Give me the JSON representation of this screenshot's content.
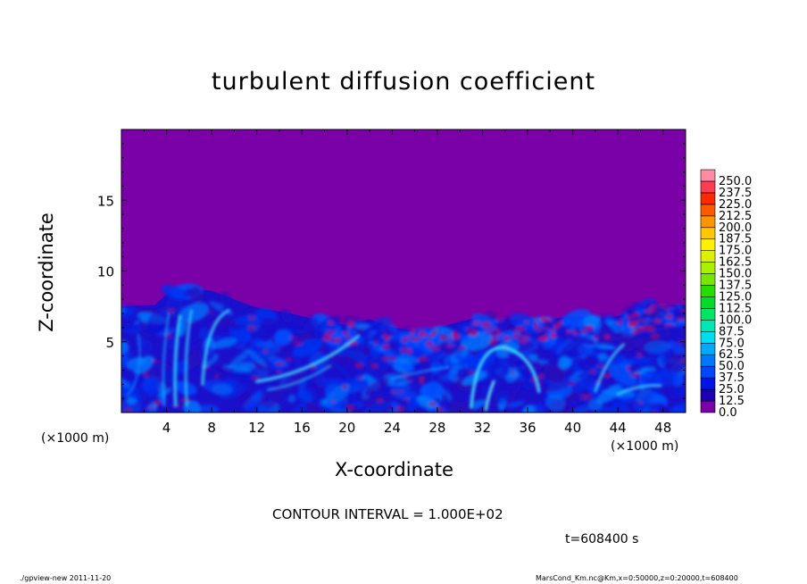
{
  "chart_data": {
    "type": "heatmap",
    "title": "turbulent diffusion coefficient",
    "xlabel": "X-coordinate",
    "ylabel": "Z-coordinate",
    "x_unit_label": "(×1000 m)",
    "x_ticks": [
      4,
      8,
      12,
      16,
      20,
      24,
      28,
      32,
      36,
      40,
      44,
      48
    ],
    "y_ticks": [
      5,
      10,
      15
    ],
    "xlim": [
      0,
      50
    ],
    "ylim": [
      0,
      20
    ],
    "colorbar": {
      "levels": [
        "0.0",
        "12.5",
        "25.0",
        "37.5",
        "50.0",
        "62.5",
        "75.0",
        "87.5",
        "100.0",
        "112.5",
        "125.0",
        "137.5",
        "150.0",
        "162.5",
        "175.0",
        "187.5",
        "200.0",
        "212.5",
        "225.0",
        "237.5",
        "250.0"
      ],
      "colors": [
        "#7a00a8",
        "#1e00b4",
        "#0014e6",
        "#0046ff",
        "#0078ff",
        "#00aaff",
        "#00dcf0",
        "#00e6b4",
        "#00e664",
        "#00dc28",
        "#28dc00",
        "#78e600",
        "#aaf000",
        "#dcf000",
        "#fff000",
        "#ffc800",
        "#ff9600",
        "#ff5a00",
        "#ff2800",
        "#ff3c50",
        "#ff8ca0"
      ]
    },
    "background_color": "#7a00a8",
    "turbulent_layer_top": [
      [
        0,
        7.5
      ],
      [
        3,
        7.6
      ],
      [
        4,
        8.4
      ],
      [
        6,
        8.8
      ],
      [
        8,
        8.6
      ],
      [
        10,
        8.0
      ],
      [
        12,
        7.4
      ],
      [
        15,
        7.0
      ],
      [
        18,
        6.4
      ],
      [
        20,
        6.2
      ],
      [
        22,
        6.6
      ],
      [
        24,
        6.0
      ],
      [
        26,
        5.8
      ],
      [
        28,
        6.0
      ],
      [
        30,
        6.4
      ],
      [
        32,
        6.8
      ],
      [
        34,
        6.6
      ],
      [
        36,
        6.4
      ],
      [
        38,
        6.6
      ],
      [
        40,
        6.8
      ],
      [
        42,
        6.6
      ],
      [
        44,
        6.8
      ],
      [
        46,
        7.4
      ],
      [
        48,
        7.6
      ],
      [
        50,
        7.6
      ]
    ]
  },
  "annotations": {
    "contour_interval": "CONTOUR INTERVAL = 1.000E+02",
    "time": "t=608400 s",
    "footer_left": "./gpview-new   2011-11-20",
    "footer_right": "MarsCond_Km.nc@Km,x=0:50000,z=0:20000,t=608400"
  }
}
